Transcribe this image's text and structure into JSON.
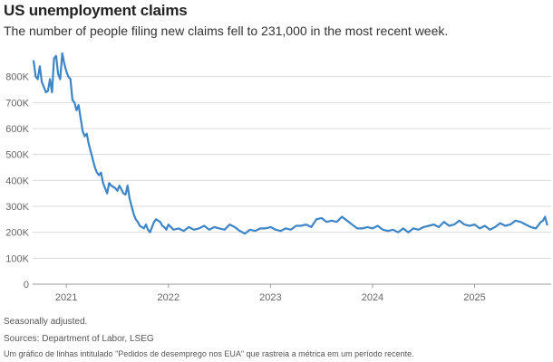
{
  "header": {
    "title": "US unemployment claims",
    "subtitle": "The number of people filing new claims fell to 231,000 in the most recent week."
  },
  "footer": {
    "note": "Seasonally adjusted.",
    "sources": "Sources: Department of Labor, LSEG",
    "alt_text": "Um gráfico de linhas intitulado \"Pedidos de desemprego nos EUA\" que rastreia a métrica em um período recente."
  },
  "colors": {
    "line": "#3d85c6",
    "grid": "#d9d9d9",
    "axis": "#999999",
    "tick_text": "#666666"
  },
  "chart_data": {
    "type": "line",
    "title": "US unemployment claims",
    "xlabel": "",
    "ylabel": "",
    "grid": true,
    "y_ticks": [
      0,
      100000,
      200000,
      300000,
      400000,
      500000,
      600000,
      700000,
      800000
    ],
    "y_tick_labels": [
      "0",
      "100K",
      "200K",
      "300K",
      "400K",
      "500K",
      "600K",
      "700K",
      "800K"
    ],
    "x_ticks": [
      "2021",
      "2022",
      "2023",
      "2024",
      "2025"
    ],
    "ylim": [
      0,
      900000
    ],
    "xlim": [
      2020.67,
      2025.75
    ],
    "x": [
      2020.68,
      2020.7,
      2020.72,
      2020.74,
      2020.76,
      2020.78,
      2020.8,
      2020.82,
      2020.84,
      2020.86,
      2020.88,
      2020.9,
      2020.92,
      2020.94,
      2020.96,
      2020.98,
      2021.0,
      2021.02,
      2021.04,
      2021.06,
      2021.08,
      2021.1,
      2021.12,
      2021.14,
      2021.16,
      2021.18,
      2021.2,
      2021.22,
      2021.24,
      2021.26,
      2021.28,
      2021.3,
      2021.32,
      2021.34,
      2021.36,
      2021.38,
      2021.4,
      2021.42,
      2021.44,
      2021.46,
      2021.48,
      2021.5,
      2021.52,
      2021.54,
      2021.56,
      2021.58,
      2021.6,
      2021.62,
      2021.64,
      2021.66,
      2021.68,
      2021.7,
      2021.72,
      2021.74,
      2021.76,
      2021.78,
      2021.8,
      2021.82,
      2021.84,
      2021.86,
      2021.88,
      2021.9,
      2021.92,
      2021.94,
      2021.96,
      2021.98,
      2022.0,
      2022.05,
      2022.1,
      2022.15,
      2022.2,
      2022.25,
      2022.3,
      2022.35,
      2022.4,
      2022.45,
      2022.5,
      2022.55,
      2022.6,
      2022.65,
      2022.7,
      2022.75,
      2022.8,
      2022.85,
      2022.9,
      2022.95,
      2023.0,
      2023.05,
      2023.1,
      2023.15,
      2023.2,
      2023.25,
      2023.3,
      2023.35,
      2023.4,
      2023.45,
      2023.5,
      2023.55,
      2023.6,
      2023.65,
      2023.7,
      2023.75,
      2023.8,
      2023.85,
      2023.9,
      2023.95,
      2024.0,
      2024.05,
      2024.1,
      2024.15,
      2024.2,
      2024.25,
      2024.3,
      2024.35,
      2024.4,
      2024.45,
      2024.5,
      2024.55,
      2024.6,
      2024.65,
      2024.7,
      2024.75,
      2024.8,
      2024.85,
      2024.9,
      2024.95,
      2025.0,
      2025.05,
      2025.1,
      2025.15,
      2025.2,
      2025.25,
      2025.3,
      2025.35,
      2025.4,
      2025.45,
      2025.5,
      2025.55,
      2025.6,
      2025.65,
      2025.67,
      2025.69,
      2025.71
    ],
    "series": [
      {
        "values": [
          860000,
          800000,
          790000,
          840000,
          780000,
          760000,
          740000,
          745000,
          790000,
          740000,
          870000,
          880000,
          810000,
          790000,
          890000,
          850000,
          820000,
          800000,
          790000,
          710000,
          700000,
          670000,
          690000,
          640000,
          590000,
          570000,
          580000,
          540000,
          510000,
          480000,
          450000,
          430000,
          420000,
          430000,
          390000,
          370000,
          350000,
          390000,
          380000,
          375000,
          370000,
          360000,
          380000,
          365000,
          350000,
          345000,
          380000,
          330000,
          300000,
          270000,
          250000,
          240000,
          225000,
          220000,
          215000,
          230000,
          210000,
          200000,
          220000,
          240000,
          250000,
          245000,
          240000,
          225000,
          220000,
          210000,
          230000,
          210000,
          215000,
          205000,
          220000,
          210000,
          215000,
          225000,
          210000,
          220000,
          215000,
          210000,
          230000,
          220000,
          205000,
          195000,
          210000,
          205000,
          215000,
          215000,
          220000,
          210000,
          205000,
          215000,
          210000,
          225000,
          225000,
          230000,
          220000,
          250000,
          255000,
          240000,
          245000,
          240000,
          260000,
          245000,
          230000,
          215000,
          215000,
          220000,
          215000,
          225000,
          210000,
          205000,
          210000,
          200000,
          215000,
          200000,
          215000,
          210000,
          220000,
          225000,
          230000,
          220000,
          240000,
          225000,
          230000,
          245000,
          230000,
          225000,
          230000,
          215000,
          225000,
          210000,
          220000,
          235000,
          225000,
          230000,
          245000,
          240000,
          230000,
          220000,
          215000,
          240000,
          245000,
          260000,
          230000
        ]
      }
    ]
  }
}
